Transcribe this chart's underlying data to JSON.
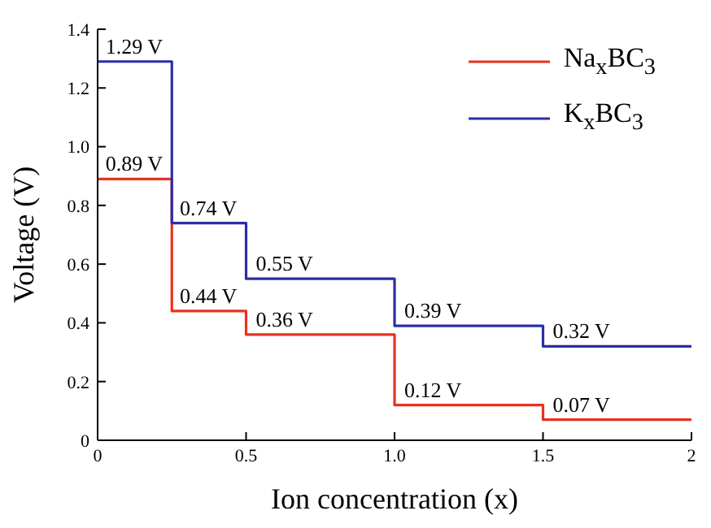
{
  "chart_data": {
    "type": "step",
    "xlabel": "Ion concentration (x)",
    "ylabel": "Voltage (V)",
    "x": [
      0,
      0.25,
      0.5,
      1,
      1.5,
      2
    ],
    "series": [
      {
        "name": "Na$_{x}$BC$_{3}$",
        "color": "#e8321e",
        "values": [
          0.89,
          0.44,
          0.36,
          0.12,
          0.07,
          0.07
        ],
        "value_labels": [
          "0.89 V",
          "0.44 V",
          "0.36 V",
          "0.12 V",
          "0.07 V",
          null
        ]
      },
      {
        "name": "K$_{x}$BC$_{3}$",
        "color": "#2b2ea6",
        "values": [
          1.29,
          0.74,
          0.55,
          0.39,
          0.32,
          0.32
        ],
        "value_labels": [
          "1.29 V",
          "0.74 V",
          "0.55 V",
          "0.39 V",
          "0.32 V",
          null
        ]
      }
    ],
    "xlim": [
      0,
      2
    ],
    "xticks": [
      0,
      0.5,
      {
        "value": 1,
        "label": "1.0"
      },
      1.5,
      2
    ],
    "ylim": [
      0,
      1.4
    ],
    "yticks": [
      0,
      0.2,
      0.4,
      0.6,
      0.8,
      {
        "value": 1,
        "label": "1.0"
      },
      1.2,
      1.4
    ],
    "legend": "top right",
    "grid": false,
    "line_style": "solid",
    "marker": "none"
  }
}
